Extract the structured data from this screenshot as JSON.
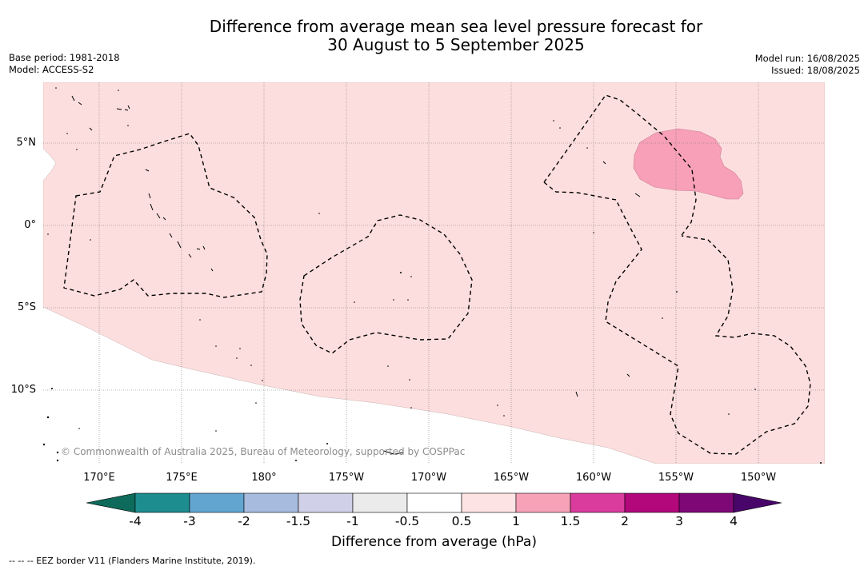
{
  "title": {
    "line1": "Difference from average mean sea level pressure forecast for",
    "line2": "30 August to 5 September 2025"
  },
  "meta": {
    "base_period": "Base period: 1981-2018",
    "model": "Model: ACCESS-S2",
    "model_run": "Model run: 16/08/2025",
    "issued": "Issued: 18/08/2025"
  },
  "map": {
    "background_anomaly_class": "0.5 to 1",
    "background_color": "#fddede",
    "high_anomaly_color": "#f8a0b8",
    "longitude_labels": [
      "170°E",
      "175°E",
      "180°",
      "175°W",
      "170°W",
      "165°W",
      "160°W",
      "155°W",
      "150°W"
    ],
    "latitude_labels": [
      "5°N",
      "0°",
      "5°S",
      "10°S"
    ],
    "copyright": "© Commonwealth of Australia 2025, Bureau of Meteorology, supported by COSPPac"
  },
  "colorbar": {
    "title": "Difference from average (hPa)",
    "tick_labels": [
      "-4",
      "-3",
      "-2",
      "-1.5",
      "-1",
      "-0.5",
      "0.5",
      "1",
      "1.5",
      "2",
      "3",
      "4"
    ],
    "colors": {
      "below_min": "#0e6a5a",
      "bins": [
        "#1e8d90",
        "#62a5d1",
        "#a6bbdd",
        "#d0d0e8",
        "#ebebeb",
        "#ffffff",
        "#fde3e3",
        "#f7a2b7",
        "#d93c9c",
        "#b2087c",
        "#7d0876"
      ],
      "above_max": "#49066a"
    }
  },
  "footnote": "--  --  -- EEZ border V11 (Flanders Marine Institute, 2019)."
}
